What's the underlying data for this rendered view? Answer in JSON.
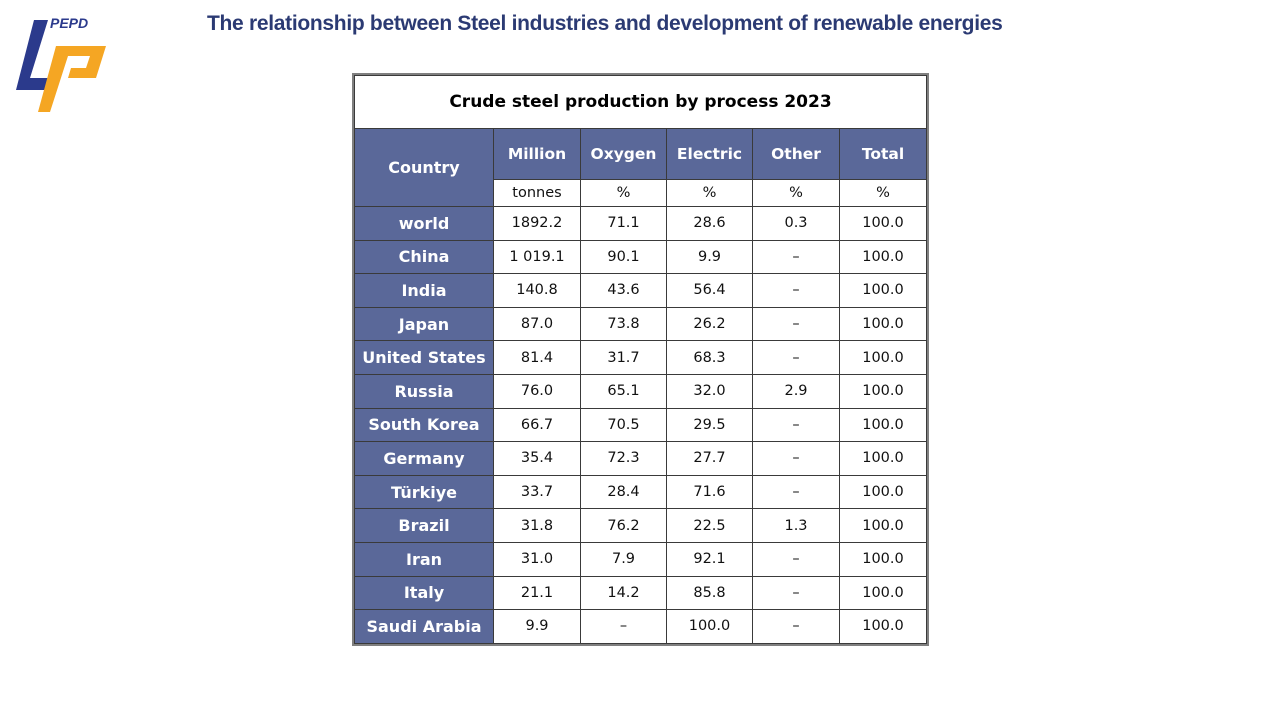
{
  "header": {
    "logo_text": "PEPD",
    "title": "The relationship between Steel industries and development of renewable energies",
    "brand_colors": {
      "blue": "#2b3a8c",
      "orange": "#f5a623",
      "title": "#2b3a73"
    }
  },
  "table": {
    "caption": "Crude steel production by process 2023",
    "header_color": "#5a6899",
    "columns": [
      {
        "label": "Country",
        "unit": ""
      },
      {
        "label": "Million",
        "unit": "tonnes"
      },
      {
        "label": "Oxygen",
        "unit": "%"
      },
      {
        "label": "Electric",
        "unit": "%"
      },
      {
        "label": "Other",
        "unit": "%"
      },
      {
        "label": "Total",
        "unit": "%"
      }
    ],
    "rows": [
      {
        "country": "world",
        "million_tonnes": "1892.2",
        "oxygen": "71.1",
        "electric": "28.6",
        "other": "0.3",
        "total": "100.0"
      },
      {
        "country": "China",
        "million_tonnes": "1 019.1",
        "oxygen": "90.1",
        "electric": "9.9",
        "other": "–",
        "total": "100.0"
      },
      {
        "country": "India",
        "million_tonnes": "140.8",
        "oxygen": "43.6",
        "electric": "56.4",
        "other": "–",
        "total": "100.0"
      },
      {
        "country": "Japan",
        "million_tonnes": "87.0",
        "oxygen": "73.8",
        "electric": "26.2",
        "other": "–",
        "total": "100.0"
      },
      {
        "country": "United States",
        "million_tonnes": "81.4",
        "oxygen": "31.7",
        "electric": "68.3",
        "other": "–",
        "total": "100.0"
      },
      {
        "country": "Russia",
        "million_tonnes": "76.0",
        "oxygen": "65.1",
        "electric": "32.0",
        "other": "2.9",
        "total": "100.0"
      },
      {
        "country": "South Korea",
        "million_tonnes": "66.7",
        "oxygen": "70.5",
        "electric": "29.5",
        "other": "–",
        "total": "100.0"
      },
      {
        "country": "Germany",
        "million_tonnes": "35.4",
        "oxygen": "72.3",
        "electric": "27.7",
        "other": "–",
        "total": "100.0"
      },
      {
        "country": "Türkiye",
        "million_tonnes": "33.7",
        "oxygen": "28.4",
        "electric": "71.6",
        "other": "–",
        "total": "100.0"
      },
      {
        "country": "Brazil",
        "million_tonnes": "31.8",
        "oxygen": "76.2",
        "electric": "22.5",
        "other": "1.3",
        "total": "100.0"
      },
      {
        "country": "Iran",
        "million_tonnes": "31.0",
        "oxygen": "7.9",
        "electric": "92.1",
        "other": "–",
        "total": "100.0"
      },
      {
        "country": "Italy",
        "million_tonnes": "21.1",
        "oxygen": "14.2",
        "electric": "85.8",
        "other": "–",
        "total": "100.0"
      },
      {
        "country": "Saudi Arabia",
        "million_tonnes": "9.9",
        "oxygen": "–",
        "electric": "100.0",
        "other": "–",
        "total": "100.0"
      }
    ]
  }
}
